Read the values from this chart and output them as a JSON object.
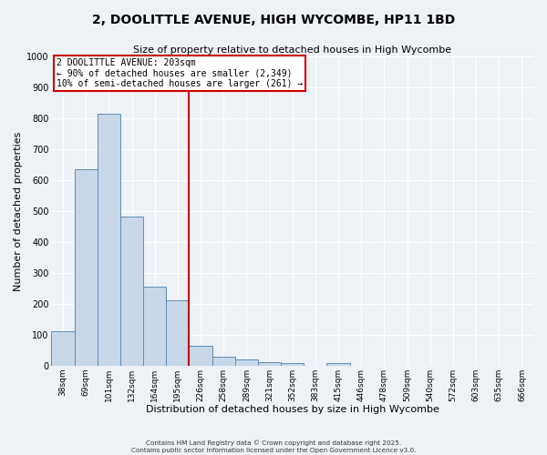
{
  "title": "2, DOOLITTLE AVENUE, HIGH WYCOMBE, HP11 1BD",
  "subtitle": "Size of property relative to detached houses in High Wycombe",
  "xlabel": "Distribution of detached houses by size in High Wycombe",
  "ylabel": "Number of detached properties",
  "bar_labels": [
    "38sqm",
    "69sqm",
    "101sqm",
    "132sqm",
    "164sqm",
    "195sqm",
    "226sqm",
    "258sqm",
    "289sqm",
    "321sqm",
    "352sqm",
    "383sqm",
    "415sqm",
    "446sqm",
    "478sqm",
    "509sqm",
    "540sqm",
    "572sqm",
    "603sqm",
    "635sqm",
    "666sqm"
  ],
  "bar_values": [
    110,
    635,
    815,
    482,
    255,
    210,
    65,
    28,
    20,
    12,
    8,
    0,
    8,
    0,
    0,
    0,
    0,
    0,
    0,
    0,
    0
  ],
  "bar_color": "#c8d8e8",
  "bar_edge_color": "#5b8db8",
  "vline_x": 5.5,
  "vline_color": "#cc0000",
  "ylim": [
    0,
    1000
  ],
  "yticks": [
    0,
    100,
    200,
    300,
    400,
    500,
    600,
    700,
    800,
    900,
    1000
  ],
  "annotation_title": "2 DOOLITTLE AVENUE: 203sqm",
  "annotation_line1": "← 90% of detached houses are smaller (2,349)",
  "annotation_line2": "10% of semi-detached houses are larger (261) →",
  "annotation_box_color": "#ffffff",
  "annotation_box_edge": "#cc0000",
  "background_color": "#eef2f7",
  "grid_color": "#ffffff",
  "footer1": "Contains HM Land Registry data © Crown copyright and database right 2025.",
  "footer2": "Contains public sector information licensed under the Open Government Licence v3.0."
}
